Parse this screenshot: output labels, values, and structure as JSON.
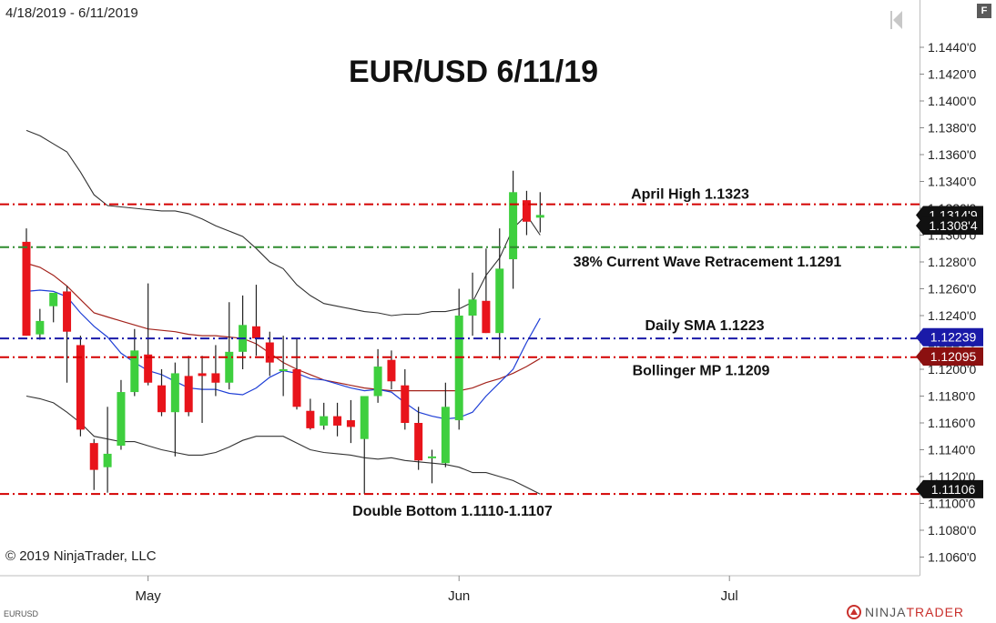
{
  "header": {
    "date_range": "4/18/2019 - 6/11/2019",
    "panel_button": "F"
  },
  "footer": {
    "copyright": "© 2019 NinjaTrader, LLC",
    "symbol": "EURUSD",
    "brand_ninja": "NINJA",
    "brand_trader": "TRADER"
  },
  "colors": {
    "up": "#3ecf3e",
    "down": "#e8141b",
    "wick": "#222222",
    "bollinger": "#333333",
    "sma_blue": "#1f3fd6",
    "sma_red": "#a3231c",
    "level_red": "#d40000",
    "level_green": "#2e8b2e",
    "level_blue": "#1a1aa8"
  },
  "chart_data": {
    "type": "candlestick",
    "title": "EUR/USD 6/11/19",
    "ylim": [
      1.105,
      1.146
    ],
    "y_ticks": [
      "1.1440'0",
      "1.1420'0",
      "1.1400'0",
      "1.1380'0",
      "1.1360'0",
      "1.1340'0",
      "1.1320'0",
      "1.1300'0",
      "1.1280'0",
      "1.1260'0",
      "1.1240'0",
      "1.1220'0",
      "1.1200'0",
      "1.1180'0",
      "1.1160'0",
      "1.1140'0",
      "1.1120'0",
      "1.1100'0",
      "1.1080'0",
      "1.1060'0"
    ],
    "y_tick_values": [
      1.144,
      1.142,
      1.14,
      1.138,
      1.136,
      1.134,
      1.132,
      1.13,
      1.128,
      1.126,
      1.124,
      1.122,
      1.12,
      1.118,
      1.116,
      1.114,
      1.112,
      1.11,
      1.108,
      1.106
    ],
    "x_labels": [
      {
        "label": "May",
        "date": "2019-05-01"
      },
      {
        "label": "Jun",
        "date": "2019-06-03"
      },
      {
        "label": "Jul",
        "date": "2019-07-01"
      }
    ],
    "candles": [
      {
        "date": "2019-04-18",
        "open": 1.1295,
        "high": 1.1305,
        "low": 1.1225,
        "close": 1.1225
      },
      {
        "date": "2019-04-19",
        "open": 1.1226,
        "high": 1.1245,
        "low": 1.1222,
        "close": 1.1236
      },
      {
        "date": "2019-04-22",
        "open": 1.1247,
        "high": 1.1255,
        "low": 1.1235,
        "close": 1.1257
      },
      {
        "date": "2019-04-23",
        "open": 1.1258,
        "high": 1.1262,
        "low": 1.119,
        "close": 1.1228
      },
      {
        "date": "2019-04-24",
        "open": 1.1218,
        "high": 1.1225,
        "low": 1.115,
        "close": 1.1155
      },
      {
        "date": "2019-04-25",
        "open": 1.1145,
        "high": 1.1148,
        "low": 1.111,
        "close": 1.1125
      },
      {
        "date": "2019-04-26",
        "open": 1.1127,
        "high": 1.1172,
        "low": 1.1108,
        "close": 1.1137
      },
      {
        "date": "2019-04-29",
        "open": 1.1143,
        "high": 1.1192,
        "low": 1.114,
        "close": 1.1183
      },
      {
        "date": "2019-04-30",
        "open": 1.1183,
        "high": 1.123,
        "low": 1.118,
        "close": 1.1214
      },
      {
        "date": "2019-05-01",
        "open": 1.1211,
        "high": 1.1264,
        "low": 1.1188,
        "close": 1.119
      },
      {
        "date": "2019-05-02",
        "open": 1.1188,
        "high": 1.12,
        "low": 1.1165,
        "close": 1.1168
      },
      {
        "date": "2019-05-03",
        "open": 1.1168,
        "high": 1.1205,
        "low": 1.1135,
        "close": 1.1197
      },
      {
        "date": "2019-05-06",
        "open": 1.1195,
        "high": 1.121,
        "low": 1.1165,
        "close": 1.1168
      },
      {
        "date": "2019-05-07",
        "open": 1.1197,
        "high": 1.121,
        "low": 1.116,
        "close": 1.1195
      },
      {
        "date": "2019-05-08",
        "open": 1.1197,
        "high": 1.1218,
        "low": 1.118,
        "close": 1.119
      },
      {
        "date": "2019-05-09",
        "open": 1.119,
        "high": 1.125,
        "low": 1.1185,
        "close": 1.1213
      },
      {
        "date": "2019-05-10",
        "open": 1.1213,
        "high": 1.1255,
        "low": 1.12,
        "close": 1.1233
      },
      {
        "date": "2019-05-13",
        "open": 1.1232,
        "high": 1.1263,
        "low": 1.121,
        "close": 1.1223
      },
      {
        "date": "2019-05-14",
        "open": 1.122,
        "high": 1.1228,
        "low": 1.1195,
        "close": 1.1205
      },
      {
        "date": "2019-05-15",
        "open": 1.12,
        "high": 1.1225,
        "low": 1.118,
        "close": 1.12
      },
      {
        "date": "2019-05-16",
        "open": 1.12,
        "high": 1.1223,
        "low": 1.117,
        "close": 1.1172
      },
      {
        "date": "2019-05-17",
        "open": 1.1169,
        "high": 1.1178,
        "low": 1.1155,
        "close": 1.1156
      },
      {
        "date": "2019-05-20",
        "open": 1.1158,
        "high": 1.1175,
        "low": 1.1155,
        "close": 1.1165
      },
      {
        "date": "2019-05-21",
        "open": 1.1165,
        "high": 1.1175,
        "low": 1.115,
        "close": 1.1158
      },
      {
        "date": "2019-05-22",
        "open": 1.1162,
        "high": 1.1177,
        "low": 1.1145,
        "close": 1.1157
      },
      {
        "date": "2019-05-23",
        "open": 1.1148,
        "high": 1.118,
        "low": 1.1107,
        "close": 1.118
      },
      {
        "date": "2019-05-24",
        "open": 1.118,
        "high": 1.1215,
        "low": 1.1175,
        "close": 1.1202
      },
      {
        "date": "2019-05-27",
        "open": 1.1207,
        "high": 1.1214,
        "low": 1.1185,
        "close": 1.1191
      },
      {
        "date": "2019-05-28",
        "open": 1.1188,
        "high": 1.12,
        "low": 1.1155,
        "close": 1.116
      },
      {
        "date": "2019-05-29",
        "open": 1.116,
        "high": 1.1172,
        "low": 1.1125,
        "close": 1.1132
      },
      {
        "date": "2019-05-30",
        "open": 1.1135,
        "high": 1.114,
        "low": 1.1115,
        "close": 1.1135
      },
      {
        "date": "2019-05-31",
        "open": 1.113,
        "high": 1.119,
        "low": 1.1127,
        "close": 1.1172
      },
      {
        "date": "2019-06-03",
        "open": 1.1162,
        "high": 1.126,
        "low": 1.1155,
        "close": 1.124
      },
      {
        "date": "2019-06-04",
        "open": 1.124,
        "high": 1.1272,
        "low": 1.1225,
        "close": 1.1252
      },
      {
        "date": "2019-06-05",
        "open": 1.1251,
        "high": 1.129,
        "low": 1.1227,
        "close": 1.1227
      },
      {
        "date": "2019-06-06",
        "open": 1.1227,
        "high": 1.1305,
        "low": 1.1207,
        "close": 1.1275
      },
      {
        "date": "2019-06-07",
        "open": 1.1282,
        "high": 1.1348,
        "low": 1.126,
        "close": 1.1332
      },
      {
        "date": "2019-06-10",
        "open": 1.1326,
        "high": 1.1333,
        "low": 1.13,
        "close": 1.131
      },
      {
        "date": "2019-06-11",
        "open": 1.1313,
        "high": 1.1332,
        "low": 1.1302,
        "close": 1.1315
      }
    ],
    "bollinger_upper": [
      1.1378,
      1.1374,
      1.1368,
      1.1362,
      1.1347,
      1.133,
      1.1322,
      1.1321,
      1.132,
      1.1319,
      1.1318,
      1.1318,
      1.1316,
      1.1312,
      1.1307,
      1.1303,
      1.1299,
      1.129,
      1.128,
      1.1275,
      1.1263,
      1.1255,
      1.1249,
      1.1247,
      1.1245,
      1.1243,
      1.1242,
      1.124,
      1.1241,
      1.1241,
      1.1243,
      1.1243,
      1.1245,
      1.125,
      1.127,
      1.1283,
      1.1305,
      1.1315,
      1.13
    ],
    "sma_red": [
      1.1279,
      1.1276,
      1.127,
      1.1262,
      1.1252,
      1.1242,
      1.1239,
      1.1236,
      1.1233,
      1.123,
      1.1229,
      1.1228,
      1.1226,
      1.1225,
      1.1225,
      1.1224,
      1.1223,
      1.1219,
      1.1212,
      1.1205,
      1.12,
      1.1196,
      1.1192,
      1.119,
      1.1188,
      1.1186,
      1.1185,
      1.1184,
      1.1184,
      1.1184,
      1.1184,
      1.1184,
      1.1184,
      1.1186,
      1.119,
      1.1193,
      1.1197,
      1.1202,
      1.1208
    ],
    "sma_blue": [
      1.1258,
      1.1259,
      1.1258,
      1.1254,
      1.1242,
      1.1232,
      1.1224,
      1.1212,
      1.1205,
      1.1199,
      1.1196,
      1.1191,
      1.1186,
      1.1185,
      1.1185,
      1.1182,
      1.1181,
      1.1186,
      1.1194,
      1.1199,
      1.1197,
      1.1193,
      1.1192,
      1.1189,
      1.1186,
      1.1184,
      1.1185,
      1.1183,
      1.1175,
      1.1168,
      1.1165,
      1.1163,
      1.1164,
      1.1168,
      1.118,
      1.119,
      1.12,
      1.122,
      1.1238
    ],
    "bollinger_lower": [
      1.118,
      1.1178,
      1.1175,
      1.1168,
      1.116,
      1.115,
      1.1148,
      1.1146,
      1.1146,
      1.1143,
      1.114,
      1.1138,
      1.1136,
      1.1136,
      1.1138,
      1.1142,
      1.1147,
      1.115,
      1.115,
      1.115,
      1.1145,
      1.114,
      1.1138,
      1.1137,
      1.1136,
      1.1134,
      1.1133,
      1.1134,
      1.1132,
      1.1131,
      1.113,
      1.1129,
      1.1127,
      1.1123,
      1.1123,
      1.112,
      1.1117,
      1.1112,
      1.1107
    ],
    "levels": [
      {
        "label": "April High 1.1323",
        "value": 1.1323,
        "color": "level_red",
        "label_value": "1.1323"
      },
      {
        "label": "38% Current Wave Retracement 1.1291",
        "value": 1.1291,
        "color": "level_green"
      },
      {
        "label": "Daily SMA 1.1223",
        "value": 1.1223,
        "color": "level_blue"
      },
      {
        "label": "Bollinger MP 1.1209",
        "value": 1.1209,
        "color": "level_red"
      },
      {
        "label": "Double Bottom 1.1110-1.1107",
        "value": 1.1107,
        "color": "level_red"
      }
    ],
    "price_tags": [
      {
        "text": "1.1314'9",
        "value": 1.13149,
        "bg": "#111111"
      },
      {
        "text": "1.1308'4",
        "value": 1.13084,
        "bg": "#111111"
      },
      {
        "text": "1.12239",
        "value": 1.12239,
        "bg": "#1a1aa8"
      },
      {
        "text": "1.12095",
        "value": 1.12095,
        "bg": "#8b1010"
      },
      {
        "text": "1.11106",
        "value": 1.11106,
        "bg": "#111111"
      }
    ]
  }
}
